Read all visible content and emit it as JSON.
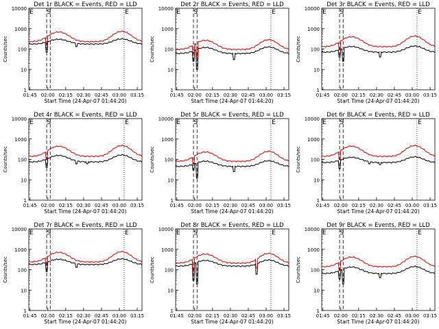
{
  "figure": {
    "colors": {
      "events": "#000000",
      "lld": "#dd0000",
      "axis": "#000000",
      "background": "#ffffff"
    },
    "common": {
      "ylabel": "Counts/sec",
      "xlabel": "Start Time (24-Apr-07 01:44:20)",
      "x_ticks": [
        "01:45",
        "02:00",
        "02:15",
        "02:30",
        "02:45",
        "03:00",
        "03:15"
      ],
      "y_ticks": [
        "1",
        "10",
        "100",
        "1000",
        "10000"
      ],
      "xlim_min": [
        0,
        95
      ],
      "ylim": [
        1,
        10000
      ],
      "y_scale": "log",
      "markers": {
        "start": "S",
        "end": "E"
      }
    }
  },
  "chart_data": [
    {
      "type": "line",
      "title": "Det 1r BLACK = Events, RED = LLD",
      "series": [
        {
          "name": "Events",
          "color": "#000000",
          "base": 175,
          "gain": 1.8,
          "dips": [
            [
              15,
              70
            ],
            [
              40,
              130
            ]
          ]
        },
        {
          "name": "LLD",
          "color": "#dd0000",
          "base": 230,
          "gain": 3.2,
          "dips": [
            [
              15,
              150
            ]
          ]
        }
      ],
      "markers": {
        "start_lines": [
          15,
          18
        ],
        "end_line": 80
      }
    },
    {
      "type": "line",
      "title": "Det 2r BLACK = Events, RED = LLD",
      "series": [
        {
          "name": "Events",
          "color": "#000000",
          "base": 60,
          "gain": 2.1,
          "dips": [
            [
              15,
              25
            ],
            [
              18,
              10
            ],
            [
              49,
              30
            ]
          ]
        },
        {
          "name": "LLD",
          "color": "#dd0000",
          "base": 95,
          "gain": 3.0,
          "dips": [
            [
              15,
              60
            ],
            [
              18,
              40
            ]
          ]
        }
      ],
      "markers": {
        "start_lines": [
          15,
          18
        ],
        "end_line": 80
      }
    },
    {
      "type": "line",
      "title": "Det 3r BLACK = Events, RED = LLD",
      "series": [
        {
          "name": "Events",
          "color": "#000000",
          "base": 70,
          "gain": 2.0,
          "dips": [
            [
              15,
              40
            ],
            [
              18,
              25
            ],
            [
              49,
              40
            ]
          ]
        },
        {
          "name": "LLD",
          "color": "#dd0000",
          "base": 130,
          "gain": 3.3,
          "dips": [
            [
              15,
              90
            ]
          ]
        }
      ],
      "markers": {
        "start_lines": [
          15,
          18
        ],
        "end_line": 80
      }
    },
    {
      "type": "line",
      "title": "Det 4r BLACK = Events, RED = LLD",
      "series": [
        {
          "name": "Events",
          "color": "#000000",
          "base": 75,
          "gain": 2.2,
          "dips": [
            [
              15,
              40
            ],
            [
              40,
              60
            ],
            [
              49,
              60
            ]
          ]
        },
        {
          "name": "LLD",
          "color": "#dd0000",
          "base": 140,
          "gain": 3.4,
          "dips": [
            [
              15,
              100
            ]
          ]
        }
      ],
      "markers": {
        "start_lines": [
          15,
          18
        ],
        "end_line": 80
      }
    },
    {
      "type": "line",
      "title": "Det 5r BLACK = Events, RED = LLD",
      "series": [
        {
          "name": "Events",
          "color": "#000000",
          "base": 45,
          "gain": 1.9,
          "dips": [
            [
              15,
              30
            ],
            [
              18,
              12
            ],
            [
              49,
              25
            ]
          ]
        },
        {
          "name": "LLD",
          "color": "#dd0000",
          "base": 80,
          "gain": 3.1,
          "dips": [
            [
              15,
              60
            ]
          ]
        }
      ],
      "markers": {
        "start_lines": [
          15,
          18
        ],
        "end_line": 80
      }
    },
    {
      "type": "line",
      "title": "Det 6r BLACK = Events, RED = LLD",
      "series": [
        {
          "name": "Events",
          "color": "#000000",
          "base": 70,
          "gain": 1.9,
          "dips": [
            [
              15,
              35
            ],
            [
              40,
              60
            ],
            [
              49,
              55
            ]
          ]
        },
        {
          "name": "LLD",
          "color": "#dd0000",
          "base": 140,
          "gain": 3.4,
          "dips": [
            [
              15,
              100
            ]
          ]
        }
      ],
      "markers": {
        "start_lines": [
          15,
          18
        ],
        "end_line": 80
      }
    },
    {
      "type": "line",
      "title": "Det 7r BLACK = Events, RED = LLD",
      "series": [
        {
          "name": "Events",
          "color": "#000000",
          "base": 180,
          "gain": 1.9,
          "dips": [
            [
              15,
              80
            ],
            [
              40,
              130
            ]
          ]
        },
        {
          "name": "LLD",
          "color": "#dd0000",
          "base": 240,
          "gain": 3.2,
          "dips": [
            [
              15,
              160
            ]
          ]
        }
      ],
      "markers": {
        "start_lines": [
          15,
          18
        ],
        "end_line": 80
      }
    },
    {
      "type": "line",
      "title": "Det 8r BLACK = Events, RED = LLD",
      "series": [
        {
          "name": "Events",
          "color": "#000000",
          "base": 150,
          "gain": 2.0,
          "dips": [
            [
              15,
              30
            ],
            [
              18,
              20
            ],
            [
              68,
              60
            ]
          ]
        },
        {
          "name": "LLD",
          "color": "#dd0000",
          "base": 210,
          "gain": 3.0,
          "dips": [
            [
              15,
              80
            ],
            [
              68,
              120
            ]
          ]
        }
      ],
      "markers": {
        "start_lines": [
          15,
          18
        ],
        "end_line": 80
      }
    },
    {
      "type": "line",
      "title": "Det 9r BLACK = Events, RED = LLD",
      "series": [
        {
          "name": "Events",
          "color": "#000000",
          "base": 65,
          "gain": 2.2,
          "dips": [
            [
              15,
              35
            ],
            [
              18,
              20
            ],
            [
              49,
              40
            ]
          ]
        },
        {
          "name": "LLD",
          "color": "#dd0000",
          "base": 140,
          "gain": 3.2,
          "dips": [
            [
              15,
              90
            ]
          ]
        }
      ],
      "markers": {
        "start_lines": [
          15,
          18
        ],
        "end_line": 80
      }
    }
  ]
}
